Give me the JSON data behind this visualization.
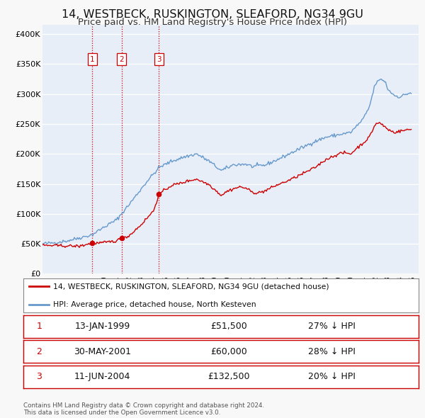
{
  "title": "14, WESTBECK, RUSKINGTON, SLEAFORD, NG34 9GU",
  "subtitle": "Price paid vs. HM Land Registry's House Price Index (HPI)",
  "title_fontsize": 11.5,
  "subtitle_fontsize": 9.5,
  "background_color": "#f8f8f8",
  "plot_bg_color": "#e8eef8",
  "red_line_label": "14, WESTBECK, RUSKINGTON, SLEAFORD, NG34 9GU (detached house)",
  "blue_line_label": "HPI: Average price, detached house, North Kesteven",
  "transactions": [
    {
      "num": 1,
      "date_x": 1999.04,
      "value": 51500,
      "date_str": "13-JAN-1999",
      "pct": "27%",
      "dir": "↓"
    },
    {
      "num": 2,
      "date_x": 2001.42,
      "value": 60000,
      "date_str": "30-MAY-2001",
      "pct": "28%",
      "dir": "↓"
    },
    {
      "num": 3,
      "date_x": 2004.44,
      "value": 132500,
      "date_str": "11-JUN-2004",
      "pct": "20%",
      "dir": "↓"
    }
  ],
  "vline_color": "#cc0000",
  "ylabel_ticks": [
    "£0",
    "£50K",
    "£100K",
    "£150K",
    "£200K",
    "£250K",
    "£300K",
    "£350K",
    "£400K"
  ],
  "ytick_vals": [
    0,
    50000,
    100000,
    150000,
    200000,
    250000,
    300000,
    350000,
    400000
  ],
  "xlim": [
    1995.0,
    2025.5
  ],
  "ylim": [
    0,
    415000
  ],
  "footnote": "Contains HM Land Registry data © Crown copyright and database right 2024.\nThis data is licensed under the Open Government Licence v3.0.",
  "red_color": "#cc0000",
  "blue_color": "#6699cc"
}
